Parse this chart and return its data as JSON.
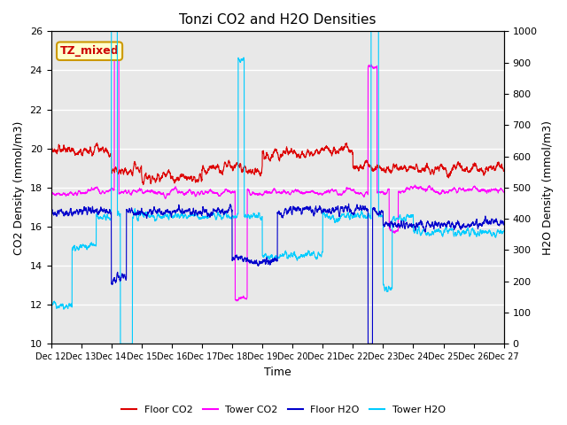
{
  "title": "Tonzi CO2 and H2O Densities",
  "xlabel": "Time",
  "ylabel_left": "CO2 Density (mmol/m3)",
  "ylabel_right": "H2O Density (mmol/m3)",
  "ylim_left": [
    10,
    26
  ],
  "ylim_right": [
    0,
    1000
  ],
  "annotation_text": "TZ_mixed",
  "annotation_color": "#cc0000",
  "annotation_bg": "#ffffcc",
  "annotation_border": "#cc9900",
  "xtick_labels": [
    "Dec 12",
    "Dec 13",
    "Dec 14",
    "Dec 15",
    "Dec 16",
    "Dec 17",
    "Dec 18",
    "Dec 19",
    "Dec 20",
    "Dec 21",
    "Dec 22",
    "Dec 23",
    "Dec 24",
    "Dec 25",
    "Dec 26",
    "Dec 27"
  ],
  "legend_entries": [
    "Floor CO2",
    "Tower CO2",
    "Floor H2O",
    "Tower H2O"
  ],
  "colors": {
    "floor_co2": "#dd0000",
    "tower_co2": "#ff00ff",
    "floor_h2o": "#0000cc",
    "tower_h2o": "#00ccff"
  },
  "bg_color": "#e8e8e8",
  "grid_color": "#ffffff",
  "n_points": 3600,
  "figsize": [
    6.4,
    4.8
  ],
  "dpi": 100
}
